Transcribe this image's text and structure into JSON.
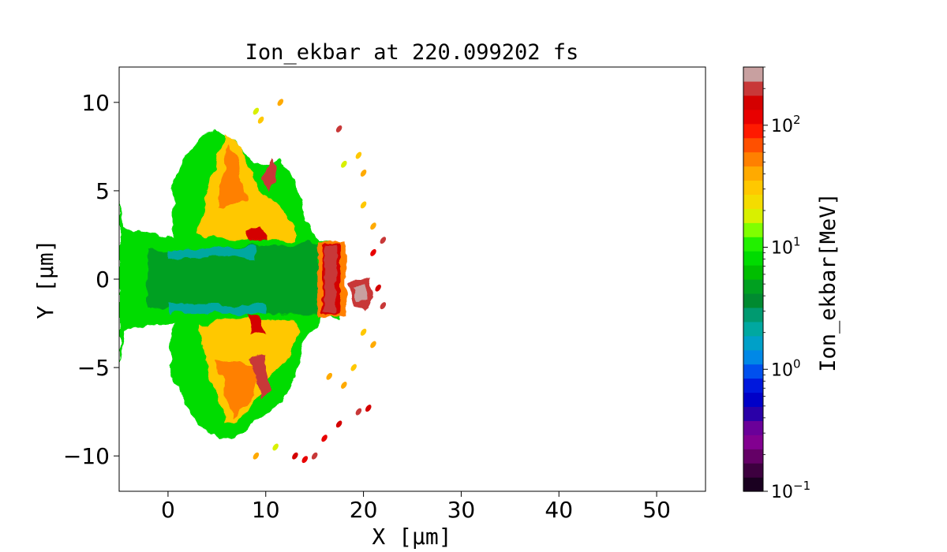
{
  "chart_data": {
    "type": "heatmap",
    "title": "Ion_ekbar at 220.099202 fs",
    "xlabel": "X [μm]",
    "ylabel": "Y [μm]",
    "xlim": [
      -5,
      55
    ],
    "ylim": [
      -12,
      12
    ],
    "x_ticks": [
      0,
      10,
      20,
      30,
      40,
      50
    ],
    "y_ticks": [
      -10,
      -5,
      0,
      5,
      10
    ],
    "x_tick_labels": [
      "0",
      "10",
      "20",
      "30",
      "40",
      "50"
    ],
    "y_tick_labels": [
      "−10",
      "−5",
      "0",
      "5",
      "10"
    ],
    "grid": false,
    "colorbar": {
      "label": "Ion_ekbar[MeV]",
      "scale": "log",
      "range": [
        0.1,
        300
      ],
      "ticks": [
        {
          "value": 0.1,
          "base": "10",
          "exp": "−1"
        },
        {
          "value": 1,
          "base": "10",
          "exp": "0"
        },
        {
          "value": 10,
          "base": "10",
          "exp": "1"
        },
        {
          "value": 100,
          "base": "10",
          "exp": "2"
        }
      ],
      "colors": [
        "#1a0020",
        "#3d003f",
        "#640066",
        "#820090",
        "#6a0099",
        "#2a00a8",
        "#0000c8",
        "#0018dd",
        "#0050ee",
        "#0088e6",
        "#00a0c8",
        "#00a8a0",
        "#009a70",
        "#008a30",
        "#00a020",
        "#00be00",
        "#00dc00",
        "#22f000",
        "#80ff00",
        "#d8f000",
        "#f4dc00",
        "#ffc800",
        "#ffaa00",
        "#ff8000",
        "#ff5000",
        "#ff1a00",
        "#e80000",
        "#d40000",
        "#c83838",
        "#c8a0a0"
      ]
    },
    "regions": [
      {
        "desc": "plasma body low-mid energy",
        "x_range": [
          -5,
          17
        ],
        "y_range": [
          -10,
          10
        ],
        "level_MeV": 8
      },
      {
        "desc": "upper lobe",
        "x_range": [
          2,
          12
        ],
        "y_range": [
          2,
          8.5
        ],
        "level_MeV": 30
      },
      {
        "desc": "lower lobe",
        "x_range": [
          2,
          12
        ],
        "y_range": [
          -9,
          -2
        ],
        "level_MeV": 30
      },
      {
        "desc": "shock front",
        "x_range": [
          15.5,
          18
        ],
        "y_range": [
          -2.2,
          2.2
        ],
        "level_MeV": 150
      },
      {
        "desc": "fast ion bunch",
        "x_range": [
          18.5,
          21
        ],
        "y_range": [
          -1.6,
          0.2
        ],
        "level_MeV": 250
      }
    ]
  }
}
